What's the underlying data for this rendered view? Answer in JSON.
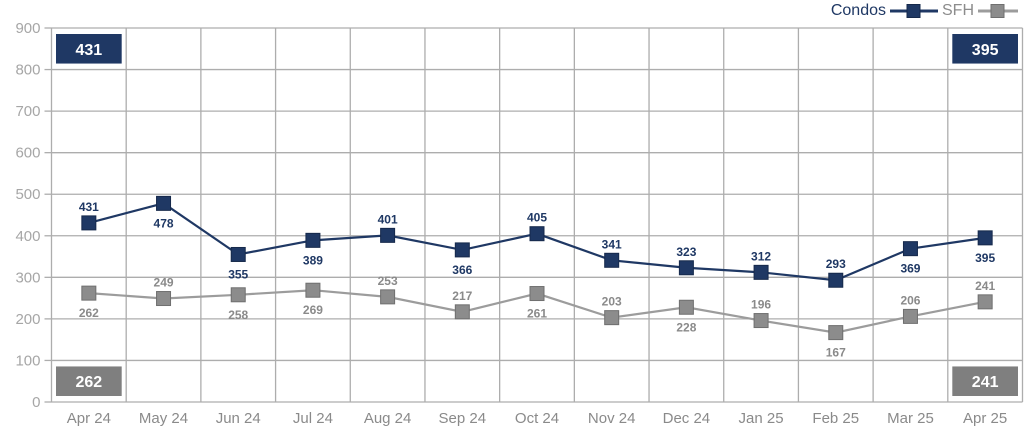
{
  "legend": {
    "items": [
      {
        "label": "Condos",
        "icon": "line-with-square-marker"
      },
      {
        "label": "SFH",
        "icon": "line-with-square-marker"
      }
    ]
  },
  "chart_data": {
    "type": "line",
    "x": [
      "Apr 24",
      "May 24",
      "Jun 24",
      "Jul 24",
      "Aug 24",
      "Sep 24",
      "Oct 24",
      "Nov 24",
      "Dec 24",
      "Jan 25",
      "Feb 25",
      "Mar 25",
      "Apr 25"
    ],
    "series": [
      {
        "name": "Condos",
        "color": "#1f3864",
        "marker_stroke": "#16294b",
        "marker": "square",
        "values": [
          431,
          478,
          355,
          389,
          401,
          366,
          405,
          341,
          323,
          312,
          293,
          369,
          395
        ],
        "label_positions": [
          "above",
          "below",
          "below",
          "below",
          "above",
          "below",
          "above",
          "above",
          "above",
          "above",
          "above",
          "below",
          "below"
        ]
      },
      {
        "name": "SFH",
        "color": "#8c8c8c",
        "line_color": "#9c9c9c",
        "marker_stroke": "#6f6f6f",
        "marker": "square",
        "values": [
          262,
          249,
          258,
          269,
          253,
          217,
          261,
          203,
          228,
          196,
          167,
          206,
          241
        ],
        "label_positions": [
          "below",
          "above",
          "below",
          "below",
          "above",
          "above",
          "below",
          "above",
          "below",
          "above",
          "below",
          "above",
          "above"
        ]
      }
    ],
    "title": "",
    "xlabel": "",
    "ylabel": "",
    "ylim": [
      0,
      900
    ],
    "yticks": [
      0,
      100,
      200,
      300,
      400,
      500,
      600,
      700,
      800,
      900
    ],
    "grid": true,
    "legend_position": "top-right",
    "badges": [
      {
        "value": "431",
        "series": "Condos",
        "position": "top-left",
        "bg": "#1f3864",
        "text_color": "#ffffff"
      },
      {
        "value": "395",
        "series": "Condos",
        "position": "top-right",
        "bg": "#1f3864",
        "text_color": "#ffffff"
      },
      {
        "value": "262",
        "series": "SFH",
        "position": "bottom-left",
        "bg": "#7f7f7f",
        "text_color": "#ffffff"
      },
      {
        "value": "241",
        "series": "SFH",
        "position": "bottom-right",
        "bg": "#7f7f7f",
        "text_color": "#ffffff"
      }
    ],
    "colors": {
      "grid": "#adadad",
      "y_axis_text": "#a6a6a6",
      "x_axis_text": "#8a8a8a",
      "background": "#ffffff"
    }
  }
}
